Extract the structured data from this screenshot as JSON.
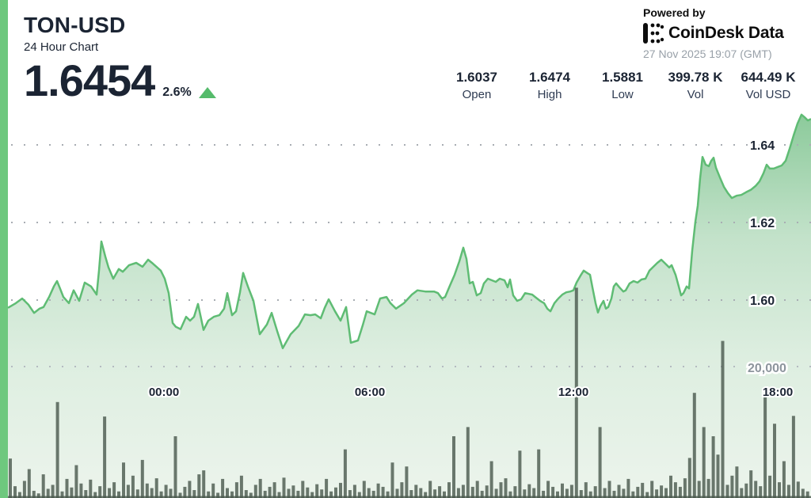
{
  "header": {
    "symbol": "TON-USD",
    "subtitle": "24 Hour Chart",
    "price": "1.6454",
    "change_pct": "2.6%",
    "change_direction": "up",
    "powered_by": "Powered by",
    "brand": "CoinDesk Data",
    "timestamp": "27 Nov 2025 19:07 (GMT)"
  },
  "stats": [
    {
      "value": "1.6037",
      "label": "Open"
    },
    {
      "value": "1.6474",
      "label": "High"
    },
    {
      "value": "1.5881",
      "label": "Low"
    },
    {
      "value": "399.78 K",
      "label": "Vol"
    },
    {
      "value": "644.49 K",
      "label": "Vol USD"
    }
  ],
  "colors": {
    "accent_green": "#6ec87e",
    "line_green": "#5fbc74",
    "triangle_green": "#55bb6b",
    "navy_text": "#1b2433",
    "muted_gray": "#98a0a8",
    "volume_bar": "rgba(72,87,76,0.8)",
    "grid_dot": "#a8adb3"
  },
  "chart_data": {
    "type": "area",
    "title": "TON-USD 24 Hour Chart",
    "price_axis": {
      "ticks": [
        1.64,
        1.62,
        1.6
      ],
      "side": "right",
      "ylim": [
        1.585,
        1.65
      ],
      "grid": "dotted"
    },
    "time_axis": {
      "ticks": [
        "00:00",
        "06:00",
        "12:00",
        "18:00"
      ]
    },
    "volume_axis": {
      "tick_label": "20,000",
      "tick_value": 20000
    },
    "series": [
      {
        "name": "TON-USD price",
        "points": [
          [
            10,
            1.598
          ],
          [
            20,
            1.5992
          ],
          [
            28,
            1.6004
          ],
          [
            36,
            1.5988
          ],
          [
            43,
            1.5967
          ],
          [
            50,
            1.5978
          ],
          [
            55,
            1.5982
          ],
          [
            62,
            1.6008
          ],
          [
            68,
            1.6035
          ],
          [
            72,
            1.6049
          ],
          [
            76,
            1.6029
          ],
          [
            80,
            1.6008
          ],
          [
            87,
            1.5992
          ],
          [
            93,
            1.6025
          ],
          [
            100,
            1.5998
          ],
          [
            107,
            1.6045
          ],
          [
            115,
            1.6035
          ],
          [
            122,
            1.6014
          ],
          [
            125,
            1.6076
          ],
          [
            128,
            1.6151
          ],
          [
            133,
            1.6112
          ],
          [
            137,
            1.6084
          ],
          [
            143,
            1.6055
          ],
          [
            150,
            1.608
          ],
          [
            155,
            1.6073
          ],
          [
            163,
            1.609
          ],
          [
            172,
            1.6096
          ],
          [
            180,
            1.6086
          ],
          [
            187,
            1.6104
          ],
          [
            193,
            1.6094
          ],
          [
            203,
            1.6076
          ],
          [
            208,
            1.6055
          ],
          [
            213,
            1.6018
          ],
          [
            218,
            1.5941
          ],
          [
            222,
            1.5931
          ],
          [
            228,
            1.5925
          ],
          [
            235,
            1.5957
          ],
          [
            240,
            1.5947
          ],
          [
            245,
            1.5957
          ],
          [
            250,
            1.599
          ],
          [
            257,
            1.5923
          ],
          [
            263,
            1.5947
          ],
          [
            270,
            1.5957
          ],
          [
            277,
            1.5961
          ],
          [
            283,
            1.5978
          ],
          [
            287,
            1.6018
          ],
          [
            293,
            1.5961
          ],
          [
            298,
            1.5971
          ],
          [
            303,
            1.602
          ],
          [
            307,
            1.607
          ],
          [
            313,
            1.6035
          ],
          [
            320,
            1.5998
          ],
          [
            328,
            1.5912
          ],
          [
            337,
            1.5937
          ],
          [
            343,
            1.5967
          ],
          [
            350,
            1.592
          ],
          [
            357,
            1.5876
          ],
          [
            367,
            1.5912
          ],
          [
            377,
            1.5933
          ],
          [
            385,
            1.5963
          ],
          [
            392,
            1.5961
          ],
          [
            398,
            1.5963
          ],
          [
            405,
            1.5953
          ],
          [
            410,
            1.598
          ],
          [
            415,
            1.6002
          ],
          [
            423,
            1.5971
          ],
          [
            430,
            1.5947
          ],
          [
            437,
            1.5982
          ],
          [
            443,
            1.589
          ],
          [
            452,
            1.5896
          ],
          [
            458,
            1.5935
          ],
          [
            463,
            1.5971
          ],
          [
            473,
            1.5963
          ],
          [
            480,
            1.6004
          ],
          [
            488,
            1.6008
          ],
          [
            493,
            1.5992
          ],
          [
            500,
            1.5978
          ],
          [
            510,
            1.5992
          ],
          [
            520,
            1.6014
          ],
          [
            527,
            1.6025
          ],
          [
            537,
            1.6022
          ],
          [
            548,
            1.6022
          ],
          [
            553,
            1.6018
          ],
          [
            558,
            1.6004
          ],
          [
            562,
            1.6008
          ],
          [
            568,
            1.6037
          ],
          [
            574,
            1.6065
          ],
          [
            580,
            1.61
          ],
          [
            585,
            1.6135
          ],
          [
            589,
            1.6106
          ],
          [
            593,
            1.6043
          ],
          [
            597,
            1.6047
          ],
          [
            602,
            1.6012
          ],
          [
            607,
            1.6018
          ],
          [
            611,
            1.6043
          ],
          [
            616,
            1.6055
          ],
          [
            621,
            1.6051
          ],
          [
            626,
            1.6047
          ],
          [
            631,
            1.6055
          ],
          [
            637,
            1.6051
          ],
          [
            641,
            1.6033
          ],
          [
            644,
            1.6053
          ],
          [
            648,
            1.6012
          ],
          [
            653,
            1.5998
          ],
          [
            658,
            1.6002
          ],
          [
            663,
            1.6018
          ],
          [
            672,
            1.6014
          ],
          [
            677,
            1.6006
          ],
          [
            682,
            1.5998
          ],
          [
            687,
            1.5992
          ],
          [
            691,
            1.5978
          ],
          [
            695,
            1.5971
          ],
          [
            700,
            1.5992
          ],
          [
            705,
            1.6004
          ],
          [
            710,
            1.6014
          ],
          [
            715,
            1.602
          ],
          [
            720,
            1.6022
          ],
          [
            724,
            1.6025
          ],
          [
            728,
            1.6045
          ],
          [
            733,
            1.6063
          ],
          [
            737,
            1.6076
          ],
          [
            742,
            1.6069
          ],
          [
            745,
            1.6065
          ],
          [
            748,
            1.6033
          ],
          [
            752,
            1.5992
          ],
          [
            755,
            1.5968
          ],
          [
            758,
            1.5984
          ],
          [
            762,
            1.5998
          ],
          [
            765,
            1.5978
          ],
          [
            768,
            1.5982
          ],
          [
            772,
            1.6004
          ],
          [
            775,
            1.6035
          ],
          [
            778,
            1.6043
          ],
          [
            782,
            1.6033
          ],
          [
            787,
            1.6022
          ],
          [
            790,
            1.6025
          ],
          [
            795,
            1.6043
          ],
          [
            800,
            1.6049
          ],
          [
            805,
            1.6045
          ],
          [
            810,
            1.6053
          ],
          [
            815,
            1.6055
          ],
          [
            820,
            1.6076
          ],
          [
            825,
            1.6086
          ],
          [
            830,
            1.6096
          ],
          [
            835,
            1.6104
          ],
          [
            840,
            1.6094
          ],
          [
            845,
            1.6084
          ],
          [
            848,
            1.609
          ],
          [
            853,
            1.6065
          ],
          [
            857,
            1.6035
          ],
          [
            860,
            1.6012
          ],
          [
            863,
            1.6018
          ],
          [
            867,
            1.6035
          ],
          [
            870,
            1.603
          ],
          [
            874,
            1.6127
          ],
          [
            878,
            1.6202
          ],
          [
            881,
            1.6243
          ],
          [
            884,
            1.6314
          ],
          [
            887,
            1.6369
          ],
          [
            891,
            1.6349
          ],
          [
            895,
            1.6345
          ],
          [
            898,
            1.6359
          ],
          [
            901,
            1.6367
          ],
          [
            904,
            1.6341
          ],
          [
            909,
            1.6316
          ],
          [
            914,
            1.6292
          ],
          [
            919,
            1.6276
          ],
          [
            924,
            1.6263
          ],
          [
            930,
            1.6269
          ],
          [
            936,
            1.6271
          ],
          [
            942,
            1.6278
          ],
          [
            948,
            1.6284
          ],
          [
            954,
            1.6294
          ],
          [
            959,
            1.6306
          ],
          [
            964,
            1.6327
          ],
          [
            968,
            1.6349
          ],
          [
            972,
            1.6339
          ],
          [
            977,
            1.6339
          ],
          [
            982,
            1.6343
          ],
          [
            987,
            1.6347
          ],
          [
            992,
            1.6359
          ],
          [
            997,
            1.639
          ],
          [
            1002,
            1.6424
          ],
          [
            1007,
            1.6455
          ],
          [
            1012,
            1.6478
          ],
          [
            1016,
            1.6471
          ],
          [
            1020,
            1.6463
          ],
          [
            1024,
            1.6467
          ]
        ]
      }
    ],
    "volume_bars": [
      6000,
      1800,
      900,
      2600,
      4400,
      1100,
      700,
      3600,
      1400,
      2000,
      14600,
      1000,
      2900,
      1600,
      5000,
      2200,
      1200,
      2800,
      900,
      1800,
      12400,
      1500,
      2400,
      1000,
      5400,
      2000,
      3400,
      1300,
      5800,
      2200,
      1500,
      3000,
      1000,
      2000,
      1400,
      9400,
      800,
      1700,
      2600,
      1200,
      3600,
      4200,
      1000,
      2200,
      800,
      2900,
      1500,
      1000,
      2400,
      3400,
      1200,
      800,
      2000,
      2900,
      1100,
      1700,
      2400,
      900,
      3100,
      1400,
      1900,
      1100,
      2600,
      1600,
      900,
      2100,
      1300,
      2900,
      1000,
      1600,
      2300,
      7400,
      1200,
      2000,
      900,
      2600,
      1500,
      1100,
      2200,
      1700,
      1000,
      5400,
      1400,
      2400,
      4800,
      1200,
      2000,
      1500,
      900,
      2600,
      1300,
      1800,
      1000,
      2400,
      9400,
      1500,
      2000,
      10800,
      1700,
      2600,
      1100,
      1900,
      5600,
      1400,
      2400,
      3000,
      1000,
      1800,
      7200,
      1300,
      2100,
      1500,
      7400,
      1100,
      2600,
      1700,
      1000,
      2200,
      1400,
      2000,
      32000,
      1200,
      2400,
      1000,
      1800,
      10800,
      1500,
      2600,
      1100,
      2000,
      1400,
      2900,
      1000,
      1700,
      2300,
      900,
      2600,
      1300,
      1900,
      1500,
      3400,
      2400,
      1700,
      3000,
      6100,
      16000,
      2600,
      10800,
      2900,
      9400,
      6600,
      23900,
      2000,
      3400,
      4800,
      1500,
      2200,
      4200,
      2600,
      1800,
      15500,
      3400,
      11300,
      2400,
      5600,
      2000,
      12500,
      2500,
      1400,
      1000
    ]
  }
}
